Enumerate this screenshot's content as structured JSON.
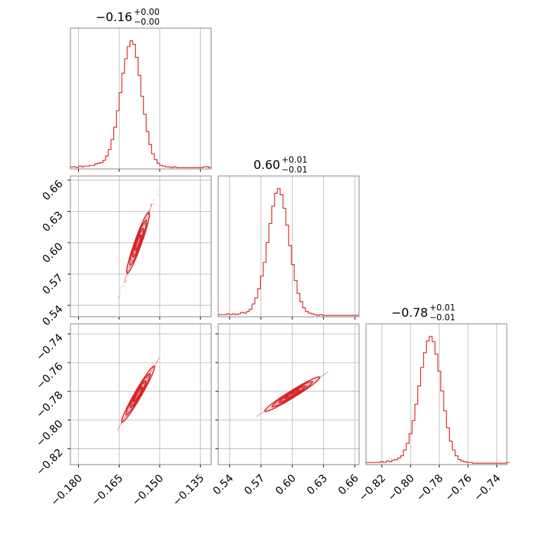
{
  "colors": {
    "series": "#d62728",
    "grid": "#b0b0b0",
    "frame": "#808080"
  },
  "chart_data": {
    "type": "corner",
    "parameters": [
      {
        "name": "",
        "range": [
          -0.183,
          -0.131
        ],
        "ticks": [
          -0.18,
          -0.165,
          -0.15,
          -0.135
        ],
        "tick_labels": [
          "−0.180",
          "−0.165",
          "−0.150",
          "−0.135"
        ],
        "title": {
          "median": "−0.16",
          "plus": "+0.00",
          "minus": "−0.00"
        },
        "histogram": {
          "start": -0.183,
          "bin_width": 0.001,
          "counts": [
            1,
            1,
            0,
            2,
            1,
            2,
            2,
            3,
            3,
            5,
            6,
            7,
            10,
            16,
            25,
            39,
            56,
            79,
            104,
            131,
            151,
            168,
            176,
            171,
            153,
            128,
            99,
            74,
            50,
            32,
            19,
            11,
            6,
            3,
            2,
            1,
            1,
            0,
            1,
            0,
            0,
            0,
            0,
            0,
            0,
            0,
            0,
            0,
            0,
            1,
            1,
            0
          ]
        }
      },
      {
        "name": "",
        "range": [
          0.529,
          0.664
        ],
        "ticks": [
          0.54,
          0.57,
          0.6,
          0.63,
          0.66
        ],
        "tick_labels": [
          "0.54",
          "0.57",
          "0.60",
          "0.63",
          "0.66"
        ],
        "title": {
          "median": "0.60",
          "plus": "+0.01",
          "minus": "−0.01"
        },
        "histogram": {
          "start": 0.529,
          "bin_width": 0.0027,
          "counts": [
            1,
            1,
            1,
            2,
            1,
            2,
            1,
            2,
            4,
            3,
            5,
            8,
            15,
            23,
            35,
            52,
            70,
            96,
            121,
            144,
            161,
            167,
            159,
            141,
            119,
            92,
            67,
            46,
            29,
            18,
            10,
            5,
            3,
            2,
            1,
            0,
            1,
            0,
            0,
            0,
            0,
            0,
            0,
            0,
            0,
            0,
            0,
            0,
            0,
            0
          ]
        }
      },
      {
        "name": "",
        "range": [
          -0.831,
          -0.733
        ],
        "ticks": [
          -0.82,
          -0.8,
          -0.78,
          -0.76,
          -0.74
        ],
        "tick_labels": [
          "−0.82",
          "−0.80",
          "−0.78",
          "−0.76",
          "−0.74"
        ],
        "title": {
          "median": "−0.78",
          "plus": "+0.01",
          "minus": "−0.01"
        },
        "histogram": {
          "start": -0.831,
          "bin_width": 0.002,
          "counts": [
            1,
            1,
            1,
            1,
            1,
            2,
            1,
            3,
            2,
            4,
            5,
            7,
            10,
            18,
            27,
            40,
            58,
            80,
            105,
            130,
            150,
            166,
            172,
            165,
            148,
            125,
            98,
            71,
            48,
            30,
            18,
            10,
            5,
            3,
            2,
            1,
            1,
            0,
            0,
            0,
            0,
            0,
            0,
            0,
            0,
            0,
            0,
            0,
            0,
            1
          ]
        }
      }
    ],
    "pairs": [
      {
        "x_param": 0,
        "y_param": 1,
        "slope": 7.3,
        "median": [
          -0.158,
          0.6
        ]
      },
      {
        "x_param": 0,
        "y_param": 2,
        "slope": 3.27,
        "median": [
          -0.158,
          -0.782
        ]
      },
      {
        "x_param": 1,
        "y_param": 2,
        "slope": 0.45,
        "median": [
          0.6,
          -0.782
        ]
      }
    ],
    "grid": true
  }
}
